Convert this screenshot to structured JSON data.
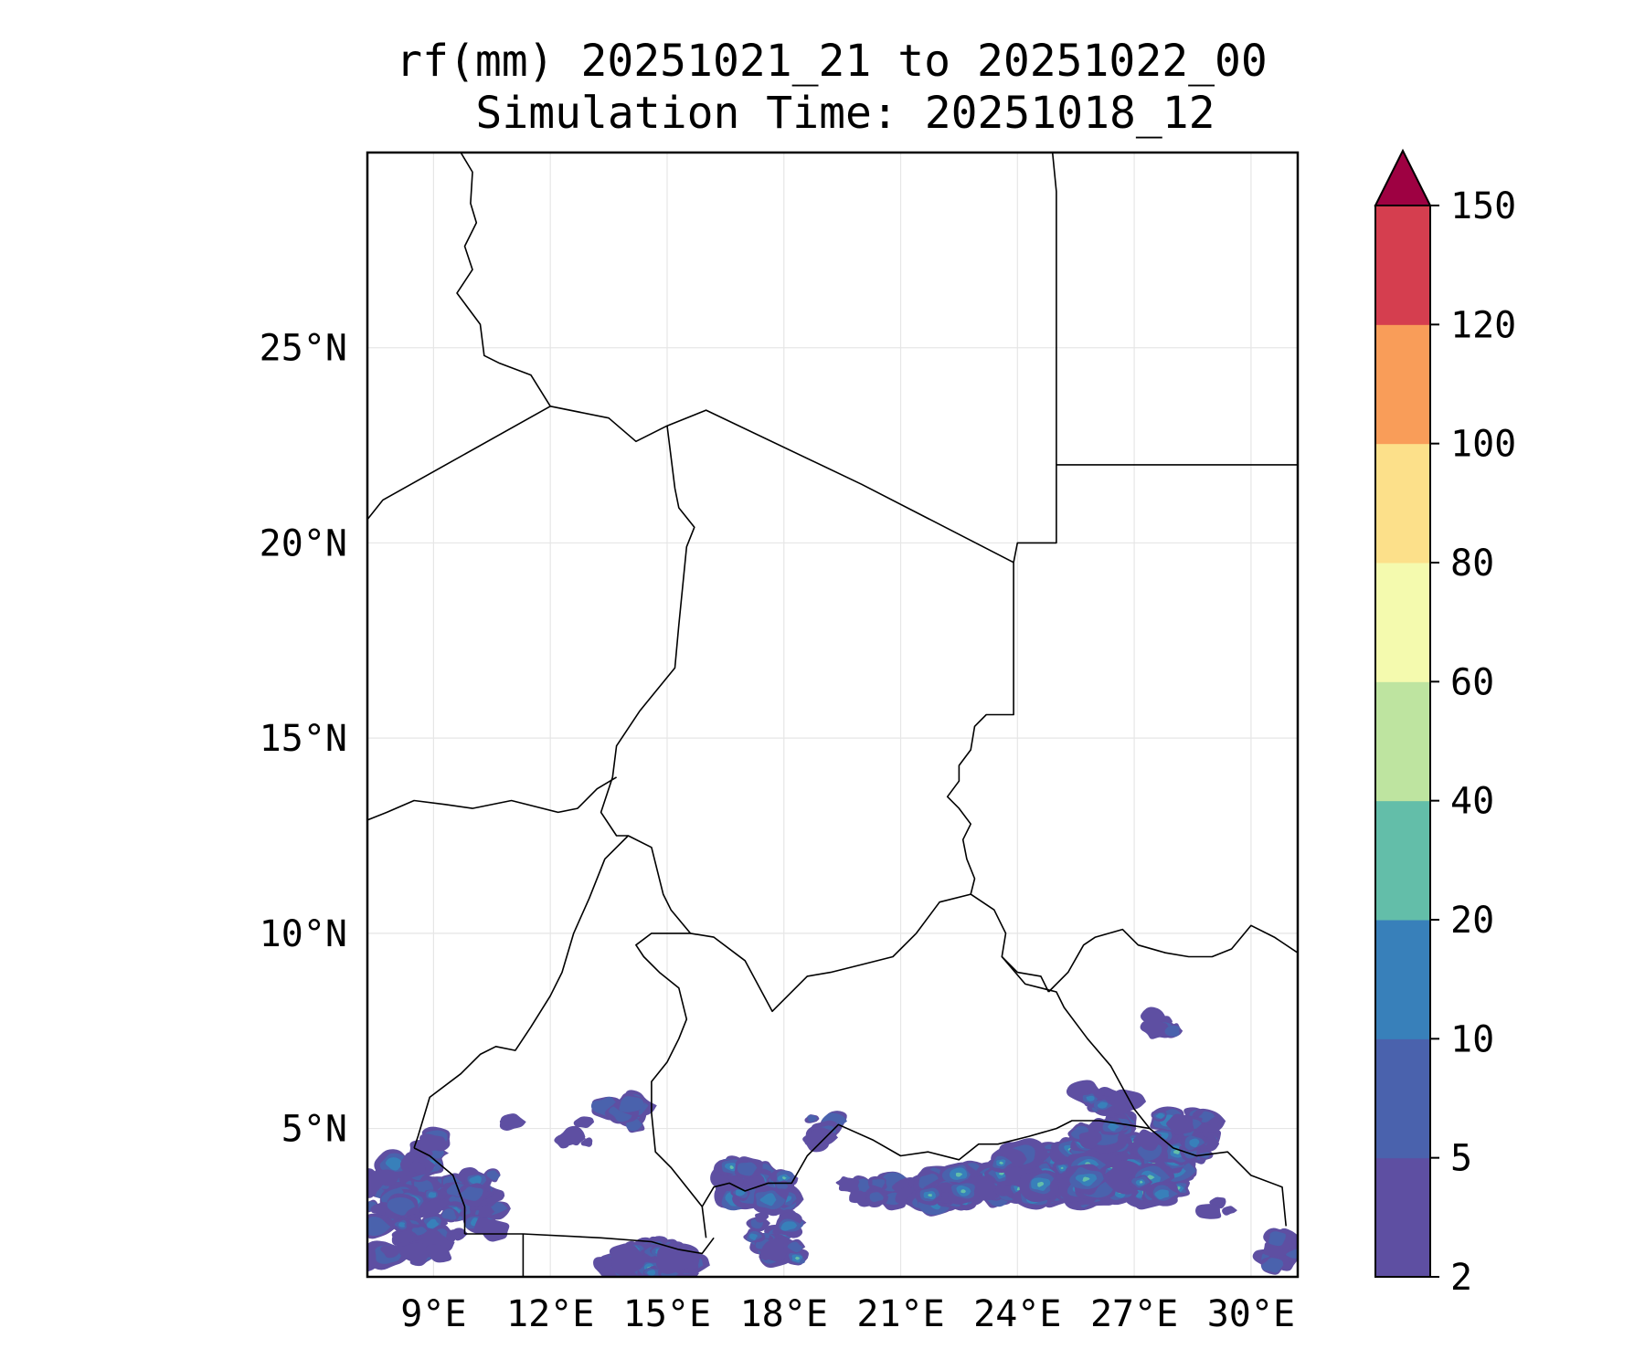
{
  "title": {
    "line1": "rf(mm) 20251021_21 to 20251022_00",
    "line2": "Simulation Time: 20251018_12"
  },
  "map": {
    "lon_range": [
      7.3,
      31.2
    ],
    "lat_range": [
      1.2,
      30.0
    ],
    "lon_ticks": [
      {
        "value": 9,
        "label": "9°E"
      },
      {
        "value": 12,
        "label": "12°E"
      },
      {
        "value": 15,
        "label": "15°E"
      },
      {
        "value": 18,
        "label": "18°E"
      },
      {
        "value": 21,
        "label": "21°E"
      },
      {
        "value": 24,
        "label": "24°E"
      },
      {
        "value": 27,
        "label": "27°E"
      },
      {
        "value": 30,
        "label": "30°E"
      }
    ],
    "lat_ticks": [
      {
        "value": 5,
        "label": "5°N"
      },
      {
        "value": 10,
        "label": "10°N"
      },
      {
        "value": 15,
        "label": "15°N"
      },
      {
        "value": 20,
        "label": "20°N"
      },
      {
        "value": 25,
        "label": "25°N"
      }
    ],
    "grid": true,
    "borders": [
      [
        [
          9.7,
          30.0
        ],
        [
          10.0,
          29.5
        ],
        [
          9.95,
          28.7
        ],
        [
          10.1,
          28.2
        ],
        [
          9.8,
          27.6
        ],
        [
          10.0,
          27.0
        ],
        [
          9.6,
          26.4
        ],
        [
          10.2,
          25.6
        ],
        [
          10.3,
          24.8
        ],
        [
          10.7,
          24.6
        ],
        [
          11.5,
          24.3
        ],
        [
          12.0,
          23.5
        ],
        [
          13.5,
          23.2
        ],
        [
          14.2,
          22.6
        ],
        [
          15.0,
          23.0
        ],
        [
          16.0,
          23.4
        ],
        [
          20.0,
          21.5
        ],
        [
          23.9,
          19.5
        ]
      ],
      [
        [
          7.3,
          20.6
        ],
        [
          7.7,
          21.1
        ],
        [
          12.0,
          23.5
        ]
      ],
      [
        [
          15.0,
          23.0
        ],
        [
          15.2,
          21.4
        ],
        [
          15.3,
          20.9
        ],
        [
          15.7,
          20.4
        ],
        [
          15.5,
          19.9
        ],
        [
          15.3,
          17.9
        ],
        [
          15.2,
          16.8
        ],
        [
          14.3,
          15.7
        ],
        [
          13.7,
          14.8
        ],
        [
          13.6,
          14.0
        ],
        [
          13.3,
          13.1
        ],
        [
          13.7,
          12.5
        ],
        [
          14.0,
          12.5
        ],
        [
          14.6,
          12.2
        ],
        [
          14.9,
          11.0
        ],
        [
          15.1,
          10.6
        ],
        [
          15.6,
          10.0
        ],
        [
          14.6,
          10.0
        ],
        [
          14.2,
          9.7
        ],
        [
          14.4,
          9.4
        ],
        [
          14.8,
          9.0
        ],
        [
          15.3,
          8.6
        ],
        [
          15.5,
          7.8
        ],
        [
          15.3,
          7.3
        ],
        [
          15.0,
          6.7
        ],
        [
          14.6,
          6.2
        ],
        [
          14.6,
          5.4
        ],
        [
          14.7,
          4.4
        ],
        [
          15.1,
          4.0
        ],
        [
          15.9,
          3.0
        ],
        [
          16.0,
          2.2
        ]
      ],
      [
        [
          7.3,
          12.9
        ],
        [
          7.8,
          13.1
        ],
        [
          8.5,
          13.4
        ],
        [
          9.3,
          13.3
        ],
        [
          10.0,
          13.2
        ],
        [
          11.0,
          13.4
        ],
        [
          12.2,
          13.1
        ],
        [
          12.7,
          13.2
        ],
        [
          13.2,
          13.7
        ],
        [
          13.7,
          14.0
        ]
      ],
      [
        [
          14.0,
          12.5
        ],
        [
          13.4,
          11.9
        ],
        [
          13.0,
          10.9
        ],
        [
          12.6,
          10.0
        ],
        [
          12.3,
          9.0
        ],
        [
          12.0,
          8.4
        ],
        [
          11.5,
          7.6
        ],
        [
          11.1,
          7.0
        ],
        [
          10.6,
          7.1
        ],
        [
          10.2,
          6.9
        ],
        [
          9.7,
          6.4
        ],
        [
          8.9,
          5.8
        ],
        [
          8.6,
          4.8
        ],
        [
          8.5,
          4.5
        ]
      ],
      [
        [
          9.8,
          2.3
        ],
        [
          11.3,
          2.3
        ],
        [
          13.3,
          2.2
        ],
        [
          14.6,
          2.1
        ],
        [
          15.3,
          1.9
        ],
        [
          15.9,
          1.8
        ],
        [
          16.2,
          2.2
        ]
      ],
      [
        [
          11.3,
          2.3
        ],
        [
          11.3,
          1.2
        ]
      ],
      [
        [
          15.6,
          10.0
        ],
        [
          16.2,
          9.9
        ],
        [
          17.0,
          9.3
        ],
        [
          17.7,
          8.0
        ],
        [
          18.6,
          8.9
        ],
        [
          19.2,
          9.0
        ],
        [
          20.0,
          9.2
        ],
        [
          20.8,
          9.4
        ],
        [
          21.4,
          10.0
        ],
        [
          22.0,
          10.8
        ],
        [
          22.8,
          11.0
        ],
        [
          23.4,
          10.6
        ],
        [
          23.7,
          10.0
        ],
        [
          23.6,
          9.4
        ],
        [
          24.2,
          8.7
        ],
        [
          25.0,
          8.5
        ],
        [
          25.2,
          8.1
        ],
        [
          25.8,
          7.3
        ],
        [
          26.4,
          6.6
        ],
        [
          27.0,
          5.5
        ],
        [
          27.4,
          5.0
        ],
        [
          28.0,
          4.5
        ],
        [
          28.6,
          4.3
        ],
        [
          29.4,
          4.4
        ],
        [
          30.0,
          3.8
        ],
        [
          30.8,
          3.5
        ],
        [
          30.9,
          2.5
        ]
      ],
      [
        [
          15.9,
          3.0
        ],
        [
          16.2,
          3.5
        ],
        [
          16.6,
          3.6
        ],
        [
          17.0,
          3.4
        ],
        [
          17.6,
          3.6
        ],
        [
          18.2,
          3.6
        ],
        [
          18.6,
          4.3
        ],
        [
          19.4,
          5.1
        ],
        [
          20.3,
          4.7
        ],
        [
          21.0,
          4.3
        ],
        [
          21.7,
          4.4
        ],
        [
          22.5,
          4.2
        ],
        [
          23.0,
          4.6
        ],
        [
          23.5,
          4.6
        ],
        [
          24.3,
          4.8
        ],
        [
          25.0,
          5.0
        ],
        [
          25.4,
          5.2
        ],
        [
          26.1,
          5.2
        ],
        [
          26.8,
          5.1
        ],
        [
          27.4,
          5.0
        ]
      ],
      [
        [
          23.9,
          19.5
        ],
        [
          24.0,
          20.0
        ],
        [
          25.0,
          20.0
        ],
        [
          25.0,
          22.0
        ],
        [
          25.0,
          29.0
        ],
        [
          24.9,
          30.0
        ]
      ],
      [
        [
          25.0,
          22.0
        ],
        [
          31.2,
          22.0
        ]
      ],
      [
        [
          23.9,
          19.5
        ],
        [
          23.9,
          15.6
        ],
        [
          23.2,
          15.6
        ],
        [
          22.9,
          15.3
        ],
        [
          22.8,
          14.7
        ],
        [
          22.5,
          14.3
        ],
        [
          22.5,
          13.9
        ],
        [
          22.2,
          13.5
        ],
        [
          22.5,
          13.2
        ],
        [
          22.8,
          12.8
        ],
        [
          22.6,
          12.4
        ],
        [
          22.7,
          11.9
        ],
        [
          22.9,
          11.4
        ],
        [
          22.8,
          11.0
        ]
      ],
      [
        [
          23.6,
          9.4
        ],
        [
          24.0,
          9.0
        ],
        [
          24.6,
          8.9
        ],
        [
          24.8,
          8.5
        ]
      ],
      [
        [
          24.8,
          8.5
        ],
        [
          25.3,
          9.0
        ],
        [
          25.7,
          9.7
        ],
        [
          26.0,
          9.9
        ],
        [
          26.7,
          10.1
        ],
        [
          27.1,
          9.7
        ],
        [
          27.8,
          9.5
        ],
        [
          28.4,
          9.4
        ],
        [
          29.0,
          9.4
        ],
        [
          29.5,
          9.6
        ],
        [
          30.0,
          10.2
        ],
        [
          30.6,
          9.9
        ],
        [
          31.2,
          9.5
        ]
      ],
      [
        [
          8.5,
          4.5
        ],
        [
          8.9,
          4.3
        ],
        [
          9.5,
          3.8
        ],
        [
          9.8,
          3.0
        ],
        [
          9.8,
          2.3
        ]
      ]
    ],
    "rain_color_note": "filled contours"
  },
  "colorbar": {
    "levels": [
      "2",
      "5",
      "10",
      "20",
      "40",
      "60",
      "80",
      "100",
      "120",
      "150"
    ],
    "colors": [
      "#5e4fa2",
      "#4a62ad",
      "#3880ba",
      "#63bea9",
      "#bee4a0",
      "#f4faae",
      "#fce08a",
      "#f99d59",
      "#d53e4f",
      "#9e0142"
    ],
    "extend": "max"
  }
}
